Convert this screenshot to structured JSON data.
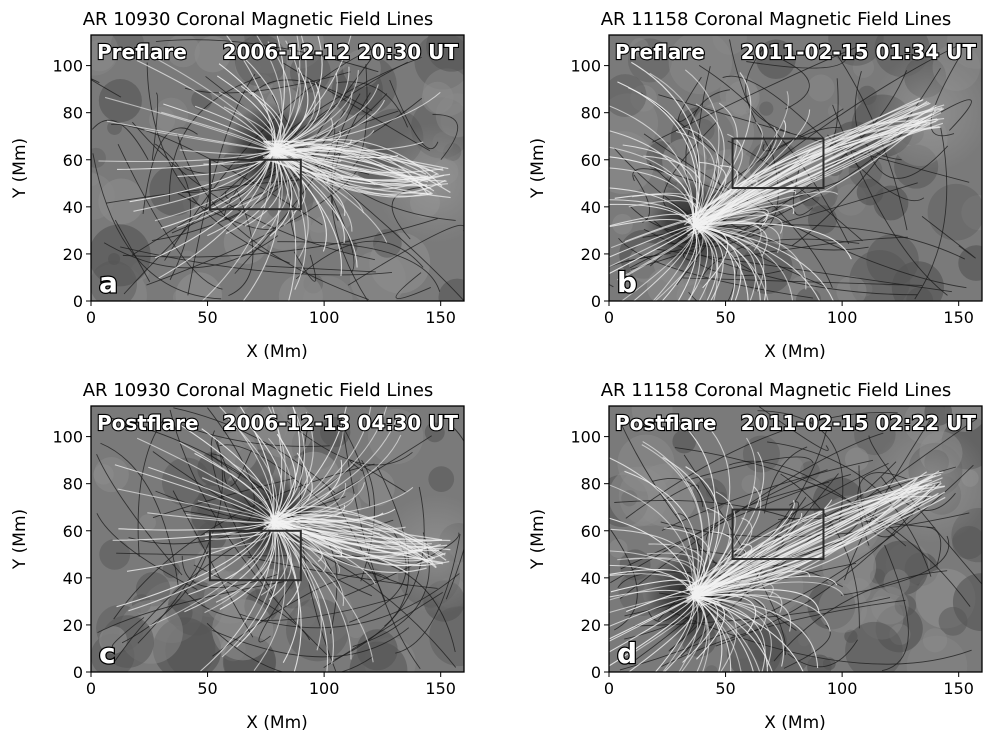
{
  "panels": [
    {
      "id": "a",
      "title": "AR 10930  Coronal Magnetic Field Lines",
      "phase": "Preflare",
      "timestamp": "2006-12-12 20:30 UT",
      "letter": "a",
      "xlabel": "X (Mm)",
      "ylabel": "Y (Mm)",
      "xlim": [
        0,
        160
      ],
      "ylim": [
        0,
        113
      ],
      "xticks": [
        "0",
        "50",
        "100",
        "150"
      ],
      "yticks": [
        "0",
        "20",
        "40",
        "60",
        "80",
        "100"
      ],
      "box_mm": {
        "x0": 51,
        "x1": 90,
        "y0": 39,
        "y1": 60
      },
      "sunspot_mm": {
        "x": 78,
        "y": 64
      },
      "opposite_pole_mm": {
        "x": 148,
        "y": 50
      }
    },
    {
      "id": "b",
      "title": "AR 11158  Coronal Magnetic Field Lines",
      "phase": "Preflare",
      "timestamp": "2011-02-15 01:34 UT",
      "letter": "b",
      "xlabel": "X (Mm)",
      "ylabel": "Y (Mm)",
      "xlim": [
        0,
        160
      ],
      "ylim": [
        0,
        113
      ],
      "xticks": [
        "0",
        "50",
        "100",
        "150"
      ],
      "yticks": [
        "0",
        "20",
        "40",
        "60",
        "80",
        "100"
      ],
      "box_mm": {
        "x0": 53,
        "x1": 92,
        "y0": 48,
        "y1": 69
      },
      "sunspot_mm": {
        "x": 36,
        "y": 32
      },
      "opposite_pole_mm": {
        "x": 138,
        "y": 80
      }
    },
    {
      "id": "c",
      "title": "AR 10930  Coronal Magnetic Field Lines",
      "phase": "Postflare",
      "timestamp": "2006-12-13 04:30 UT",
      "letter": "c",
      "xlabel": "X (Mm)",
      "ylabel": "Y (Mm)",
      "xlim": [
        0,
        160
      ],
      "ylim": [
        0,
        113
      ],
      "xticks": [
        "0",
        "50",
        "100",
        "150"
      ],
      "yticks": [
        "0",
        "20",
        "40",
        "60",
        "80",
        "100"
      ],
      "box_mm": {
        "x0": 51,
        "x1": 90,
        "y0": 39,
        "y1": 60
      },
      "sunspot_mm": {
        "x": 78,
        "y": 64
      },
      "opposite_pole_mm": {
        "x": 148,
        "y": 50
      }
    },
    {
      "id": "d",
      "title": "AR 11158  Coronal Magnetic Field Lines",
      "phase": "Postflare",
      "timestamp": "2011-02-15 02:22 UT",
      "letter": "d",
      "xlabel": "X (Mm)",
      "ylabel": "Y (Mm)",
      "xlim": [
        0,
        160
      ],
      "ylim": [
        0,
        113
      ],
      "xticks": [
        "0",
        "50",
        "100",
        "150"
      ],
      "yticks": [
        "0",
        "20",
        "40",
        "60",
        "80",
        "100"
      ],
      "box_mm": {
        "x0": 53,
        "x1": 92,
        "y0": 48,
        "y1": 69
      },
      "sunspot_mm": {
        "x": 36,
        "y": 32
      },
      "opposite_pole_mm": {
        "x": 138,
        "y": 80
      }
    }
  ],
  "colors": {
    "background_gray": "#7a7a7a",
    "dark_region": "#3a3a3a",
    "white_lines": "#f2f2f2",
    "black_lines": "#1a1a1a",
    "box": "#2b2b2b"
  }
}
